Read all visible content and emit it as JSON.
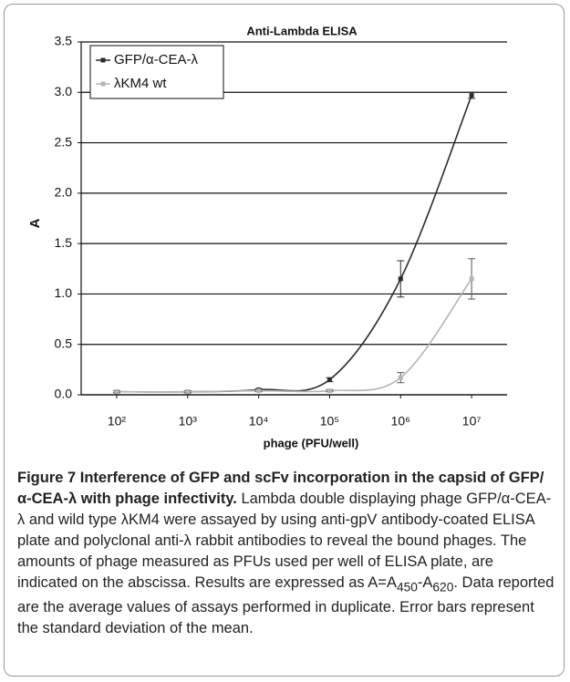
{
  "chart_data": {
    "type": "line",
    "title": "Anti-Lambda ELISA",
    "x_label": "phage (PFU/well)",
    "y_label": "A",
    "x": [
      100,
      1000,
      10000,
      100000,
      1000000,
      10000000
    ],
    "log_x": true,
    "xlim": [
      31.6,
      31600000
    ],
    "xticks": [
      {
        "value": 100,
        "label": "10²"
      },
      {
        "value": 1000,
        "label": "10³"
      },
      {
        "value": 10000,
        "label": "10⁴"
      },
      {
        "value": 100000,
        "label": "10⁵"
      },
      {
        "value": 1000000,
        "label": "10⁶"
      },
      {
        "value": 10000000,
        "label": "10⁷"
      }
    ],
    "ylim": [
      0,
      3.5
    ],
    "yticks": [
      {
        "value": 0,
        "label": "0.0"
      },
      {
        "value": 0.5,
        "label": "0.5"
      },
      {
        "value": 1,
        "label": "1.0"
      },
      {
        "value": 1.5,
        "label": "1.5"
      },
      {
        "value": 2,
        "label": "2.0"
      },
      {
        "value": 2.5,
        "label": "2.5"
      },
      {
        "value": 3,
        "label": "3.0"
      },
      {
        "value": 3.5,
        "label": "3.5"
      }
    ],
    "grid": true,
    "legend": "upper left",
    "series": [
      {
        "name": "GFP/α-CEA-λ",
        "color": "#2b2b2b",
        "values": [
          0.03,
          0.03,
          0.05,
          0.15,
          1.15,
          2.97
        ],
        "errors": [
          0.01,
          0.01,
          0.01,
          0.02,
          0.18,
          0.03
        ]
      },
      {
        "name": "λKM4 wt",
        "color": "#b5b5b5",
        "values": [
          0.03,
          0.03,
          0.04,
          0.04,
          0.17,
          1.15
        ],
        "errors": [
          0.01,
          0.01,
          0.01,
          0.01,
          0.05,
          0.2
        ]
      }
    ]
  },
  "caption": {
    "title": "Figure 7 Interference of GFP and scFv incorporation in the capsid of GFP/α-CEA-λ with phage infectivity.",
    "text_before": " Lambda double displaying phage GFP/α-CEA-λ and wild type λKM4 were assayed by using anti-gpV antibody-coated ELISA plate and polyclonal anti-λ rabbit antibodies to reveal the bound phages. The amounts of phage measured as PFUs used per well of ELISA plate, are indicated on the abscissa. Results are expressed as A=A",
    "sub1": "450",
    "mid": "-A",
    "sub2": "620",
    "text_after": ". Data reported are the average values of assays performed in duplicate. Error bars represent the standard deviation of the mean."
  }
}
